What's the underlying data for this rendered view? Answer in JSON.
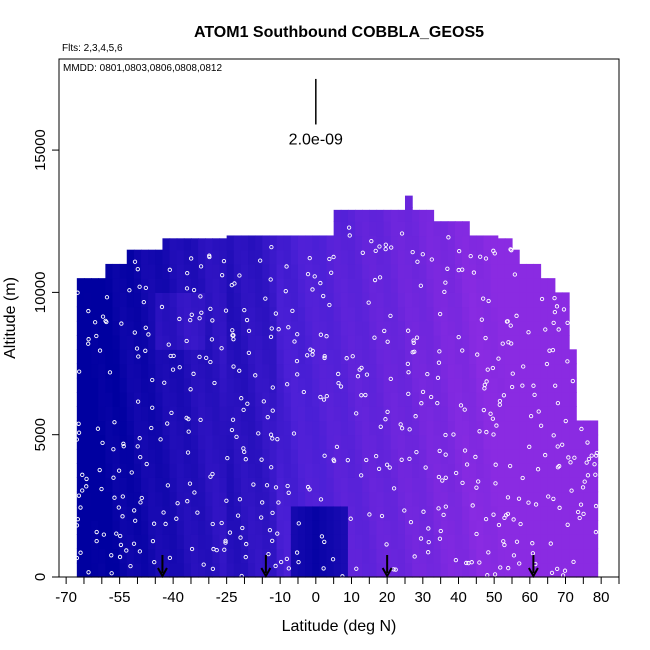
{
  "chart_data": {
    "type": "heatmap",
    "title": "ATOM1 Southbound COBBLA_GEOS5",
    "flights_note": "Flts: 2,3,4,5,6",
    "dates_note": "MMDD: 0801,0803,0806,0808,0812",
    "xlabel": "Latitude (deg N)",
    "ylabel": "Altitude (m)",
    "xlim": [
      -72,
      85
    ],
    "ylim": [
      0,
      18200
    ],
    "x_ticks": [
      -70,
      -55,
      -40,
      -25,
      -10,
      0,
      10,
      20,
      30,
      40,
      50,
      60,
      70,
      80
    ],
    "x_tick_labels": [
      "-70",
      "-55",
      "-40",
      "-25",
      "-10",
      "0",
      "10",
      "20",
      "30",
      "40",
      "50",
      "60",
      "70",
      "80"
    ],
    "x_minor_ticks": [
      -65,
      -60,
      -50,
      -45,
      -35,
      -30,
      -20,
      -15,
      -5,
      5,
      15,
      25,
      35,
      45,
      55,
      65,
      75,
      85
    ],
    "y_ticks": [
      0,
      5000,
      10000,
      15000
    ],
    "y_tick_labels": [
      "0",
      "5000",
      "10000",
      "15000"
    ],
    "scale_bar": {
      "label": "2.0e-09",
      "x": 0,
      "y_bottom": 15900,
      "y_top": 17500
    },
    "arrow_latitudes": [
      -43,
      -14,
      20,
      61
    ],
    "colors": {
      "low": "#0000a0",
      "mid": "#4a1fd6",
      "high": "#8a2be2",
      "dots": "#ffffff",
      "dots_edge": "#555555"
    },
    "data_extent": {
      "lat_bins": [
        -66,
        -64,
        -62,
        -60,
        -58,
        -56,
        -54,
        -52,
        -50,
        -48,
        -46,
        -44,
        -42,
        -40,
        -38,
        -36,
        -34,
        -32,
        -30,
        -28,
        -26,
        -24,
        -22,
        -20,
        -18,
        -16,
        -14,
        -12,
        -10,
        -8,
        -6,
        -4,
        -2,
        0,
        2,
        4,
        6,
        8,
        10,
        12,
        14,
        16,
        18,
        20,
        22,
        24,
        26,
        28,
        30,
        32,
        34,
        36,
        38,
        40,
        42,
        44,
        46,
        48,
        50,
        52,
        54,
        56,
        58,
        60,
        62,
        64,
        66,
        68,
        70,
        72,
        74,
        76,
        78
      ],
      "top_altitude_m": [
        10500,
        10500,
        10500,
        10500,
        11000,
        11000,
        11000,
        11500,
        11500,
        11500,
        11500,
        11500,
        11900,
        11900,
        11900,
        11900,
        11900,
        11900,
        11900,
        11900,
        11900,
        12000,
        12000,
        12000,
        12000,
        12000,
        12000,
        12000,
        12000,
        12000,
        12000,
        12000,
        12000,
        12000,
        12000,
        12000,
        12900,
        12900,
        12900,
        12900,
        12900,
        12900,
        12900,
        12900,
        12900,
        12900,
        13400,
        12900,
        12900,
        12900,
        12500,
        12500,
        12500,
        12500,
        12500,
        12000,
        12000,
        12000,
        12000,
        11900,
        11900,
        11500,
        11000,
        11000,
        11000,
        10500,
        10500,
        10000,
        10000,
        8000,
        5500,
        5500,
        5500
      ],
      "value_low": 0,
      "value_high": 1
    }
  }
}
